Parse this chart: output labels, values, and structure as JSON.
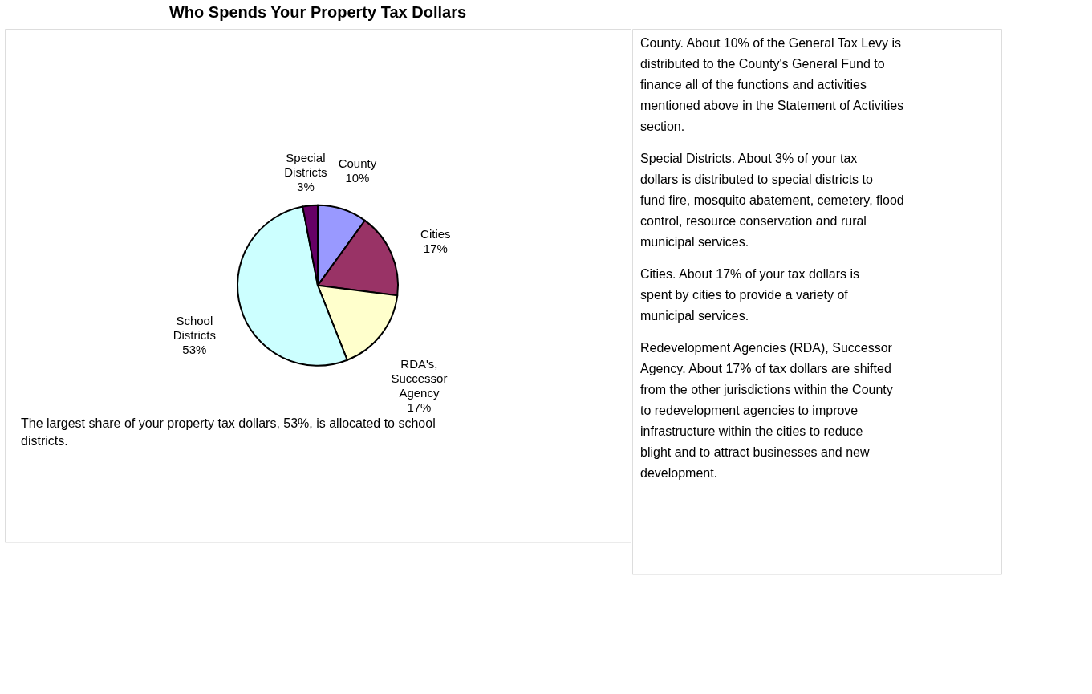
{
  "chart_data": [
    {
      "type": "pie",
      "title": "Who Spends Your Property Tax Dollars",
      "categories": [
        "County",
        "Cities",
        "RDA's, Successor Agency",
        "School Districts",
        "Special Districts"
      ],
      "values": [
        10,
        17,
        17,
        53,
        3
      ],
      "value_labels": [
        "10%",
        "17%",
        "17%",
        "53%",
        "3%"
      ],
      "colors": [
        "#9999ff",
        "#993366",
        "#ffffcc",
        "#ccffff",
        "#660066"
      ],
      "annotations": [
        "The largest share of your property tax dollars, 53%, is allocated to school districts."
      ]
    },
    {
      "type": "other",
      "annotations": [
        "County.  About 10% of the General Tax Levy is distributed to the County's General Fund to finance all of the functions and activities mentioned above in the Statement of Activities section.",
        "Special Districts.  About 3% of your tax dollars is distributed to special districts to fund fire, mosquito abatement, cemetery, flood control, resource conservation and rural municipal services.",
        "Cities.  About 17% of your tax dollars is spent by cities to provide a variety of municipal services.",
        "Redevelopment Agencies (RDA), Successor Agency.  About 17% of tax dollars are shifted from the other jurisdictions within the County to redevelopment agencies to improve infrastructure within the cities to reduce blight and to attract businesses and new development."
      ]
    }
  ]
}
